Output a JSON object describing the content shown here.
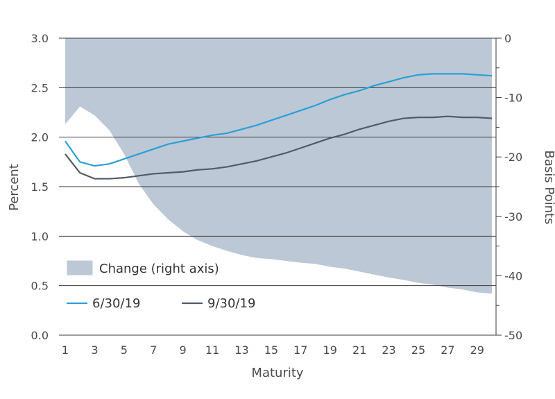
{
  "chart_data": {
    "type": "line",
    "xlabel": "Maturity",
    "ylabel": "Percent",
    "y2label": "Basis Points",
    "xlim": [
      1,
      30
    ],
    "ylim": [
      0,
      3.0
    ],
    "y2lim": [
      -50,
      0
    ],
    "x_ticks": [
      1,
      3,
      5,
      7,
      9,
      11,
      13,
      15,
      17,
      19,
      21,
      23,
      25,
      27,
      29
    ],
    "y_ticks": [
      "0.0",
      "0.5",
      "1.0",
      "1.5",
      "2.0",
      "2.5",
      "3.0"
    ],
    "y2_ticks": [
      "-50",
      "-40",
      "-30",
      "-20",
      "-10",
      "0"
    ],
    "grid": "horizontal",
    "legend_position": "bottom-left",
    "x": [
      1,
      2,
      3,
      4,
      5,
      6,
      7,
      8,
      9,
      10,
      11,
      12,
      13,
      14,
      15,
      16,
      17,
      18,
      19,
      20,
      21,
      22,
      23,
      24,
      25,
      26,
      27,
      28,
      29,
      30
    ],
    "series": [
      {
        "name": "Change (right axis)",
        "type": "area",
        "axis": "right",
        "color": "#bcc8d5",
        "values": [
          -14.5,
          -11.5,
          -13.0,
          -15.5,
          -19.5,
          -24.5,
          -28.0,
          -30.5,
          -32.5,
          -34.0,
          -35.0,
          -35.8,
          -36.5,
          -37.0,
          -37.2,
          -37.5,
          -37.8,
          -38.0,
          -38.5,
          -38.8,
          -39.3,
          -39.8,
          -40.3,
          -40.7,
          -41.2,
          -41.5,
          -42.0,
          -42.3,
          -42.8,
          -43.0
        ]
      },
      {
        "name": "6/30/19",
        "type": "line",
        "axis": "left",
        "color": "#2a9fd6",
        "values": [
          1.96,
          1.75,
          1.71,
          1.73,
          1.78,
          1.83,
          1.88,
          1.93,
          1.96,
          1.99,
          2.02,
          2.04,
          2.08,
          2.12,
          2.17,
          2.22,
          2.27,
          2.32,
          2.38,
          2.43,
          2.47,
          2.52,
          2.56,
          2.6,
          2.63,
          2.64,
          2.64,
          2.64,
          2.63,
          2.62
        ]
      },
      {
        "name": "9/30/19",
        "type": "line",
        "axis": "left",
        "color": "#4f5b66",
        "values": [
          1.83,
          1.64,
          1.58,
          1.58,
          1.59,
          1.61,
          1.63,
          1.64,
          1.65,
          1.67,
          1.68,
          1.7,
          1.73,
          1.76,
          1.8,
          1.84,
          1.89,
          1.94,
          1.99,
          2.03,
          2.08,
          2.12,
          2.16,
          2.19,
          2.2,
          2.2,
          2.21,
          2.2,
          2.2,
          2.19
        ]
      }
    ]
  }
}
